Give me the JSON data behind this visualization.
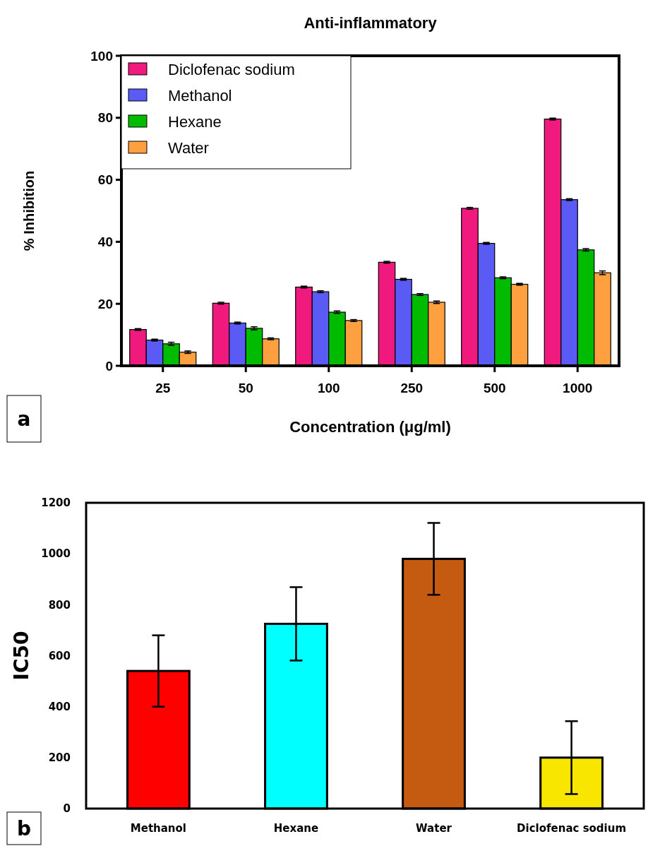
{
  "chart_data": [
    {
      "type": "bar",
      "title": "Anti-inflammatory",
      "xlabel": "Concentration (μg/ml)",
      "ylabel": "% Inhibition",
      "categories": [
        "25",
        "50",
        "100",
        "250",
        "500",
        "1000"
      ],
      "series": [
        {
          "name": "Diclofenac sodium",
          "color": "#f0197d",
          "values": [
            11.7,
            20.2,
            25.4,
            33.4,
            50.8,
            79.6
          ],
          "errors": [
            0.3,
            0.3,
            0.3,
            0.3,
            0.3,
            0.3
          ]
        },
        {
          "name": "Methanol",
          "color": "#5a5af5",
          "values": [
            8.3,
            13.8,
            23.9,
            27.9,
            39.5,
            53.6
          ],
          "errors": [
            0.3,
            0.3,
            0.3,
            0.3,
            0.3,
            0.3
          ]
        },
        {
          "name": "Hexane",
          "color": "#00bb00",
          "values": [
            7.1,
            12.1,
            17.3,
            23.0,
            28.4,
            37.4
          ],
          "errors": [
            0.5,
            0.5,
            0.4,
            0.3,
            0.3,
            0.4
          ]
        },
        {
          "name": "Water",
          "color": "#ffa040",
          "values": [
            4.4,
            8.7,
            14.6,
            20.5,
            26.3,
            30.0
          ],
          "errors": [
            0.4,
            0.3,
            0.3,
            0.4,
            0.3,
            0.6
          ]
        }
      ],
      "ylim": [
        0,
        100
      ],
      "yticks": [
        0,
        20,
        40,
        60,
        80,
        100
      ],
      "legend": "top left",
      "grid": false,
      "annotations": [
        "a"
      ]
    },
    {
      "type": "bar",
      "ylabel": "IC50",
      "categories": [
        "Methanol",
        "Hexane",
        "Water",
        "Diclofenac sodium"
      ],
      "values": [
        540,
        725,
        980,
        200
      ],
      "colors": [
        "#ff0000",
        "#00ffff",
        "#c55a11",
        "#f8e500"
      ],
      "errors": [
        140,
        144,
        141,
        143
      ],
      "ylim": [
        0,
        1200
      ],
      "yticks": [
        0,
        200,
        400,
        600,
        800,
        1000,
        1200
      ],
      "legend": false,
      "grid": false,
      "annotations": [
        "b"
      ]
    }
  ]
}
